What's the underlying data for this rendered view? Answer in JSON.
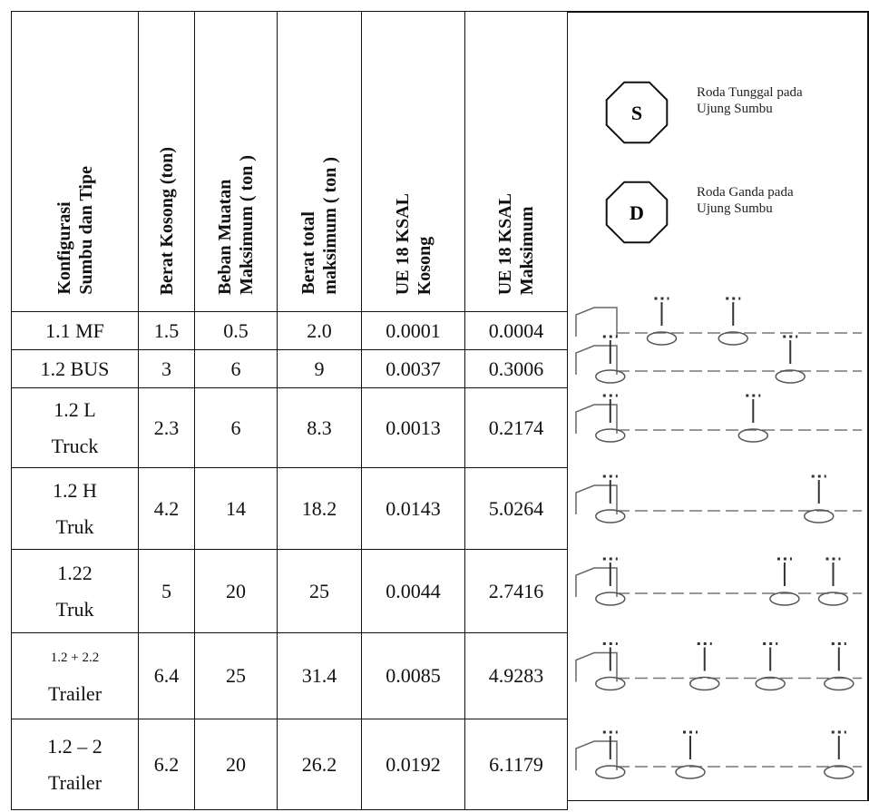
{
  "header": {
    "columns": [
      [
        "Konfigurasi",
        "Sumbu dan Tipe"
      ],
      [
        "Berat Kosong (ton)"
      ],
      [
        "Beban Muatan",
        "Maksimum ( ton )"
      ],
      [
        "Berat total",
        "maksimum ( ton )"
      ],
      [
        "UE 18 KSAL",
        "Kosong"
      ],
      [
        "UE 18 KSAL",
        "Maksimum"
      ]
    ]
  },
  "legend": [
    {
      "symbol": "S",
      "text": [
        "Roda Tunggal pada",
        "Ujung Sumbu"
      ]
    },
    {
      "symbol": "D",
      "text": [
        "Roda Ganda pada",
        "Ujung Sumbu"
      ]
    }
  ],
  "rows": [
    {
      "config": [
        "1.1 MF"
      ],
      "values": [
        "1.5",
        "0.5",
        "2.0",
        "0.0001",
        "0.0004"
      ]
    },
    {
      "config": [
        "1.2 BUS"
      ],
      "values": [
        "3",
        "6",
        "9",
        "0.0037",
        "0.3006"
      ]
    },
    {
      "config": [
        "1.2 L",
        "Truck"
      ],
      "values": [
        "2.3",
        "6",
        "8.3",
        "0.0013",
        "0.2174"
      ]
    },
    {
      "config": [
        "1.2 H",
        "Truk"
      ],
      "values": [
        "4.2",
        "14",
        "18.2",
        "0.0143",
        "5.0264"
      ]
    },
    {
      "config": [
        "1.22",
        "Truk"
      ],
      "values": [
        "5",
        "20",
        "25",
        "0.0044",
        "2.7416"
      ]
    },
    {
      "config": [
        "1.2 + 2.2",
        "Trailer"
      ],
      "values": [
        "6.4",
        "25",
        "31.4",
        "0.0085",
        "4.9283"
      ]
    },
    {
      "config": [
        "1.2 – 2",
        "Trailer"
      ],
      "values": [
        "6.2",
        "20",
        "26.2",
        "0.0192",
        "6.1179"
      ]
    }
  ]
}
